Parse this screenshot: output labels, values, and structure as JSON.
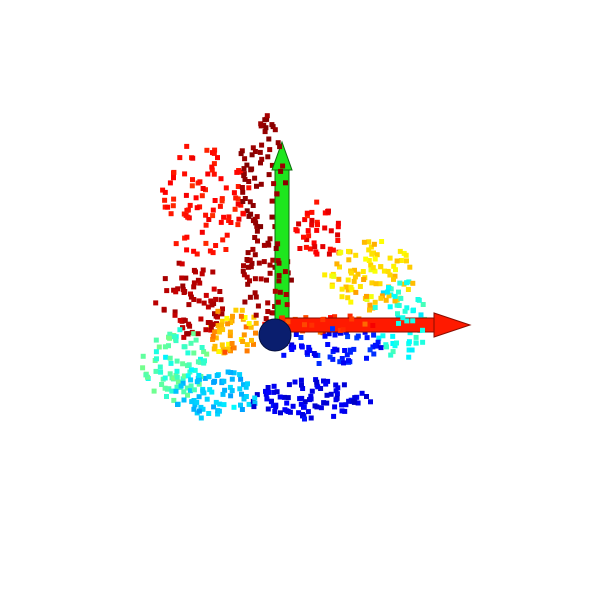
{
  "scene": {
    "background": "#ffffff",
    "point_count": 900,
    "point_colormap": "jet",
    "colors": {
      "axis_x": "#ff1a00",
      "axis_y": "#1ee61e",
      "origin_sphere": "#0a1e6e"
    },
    "icons": {
      "axis_x": "arrow-right-icon",
      "axis_y": "arrow-up-icon",
      "origin": "sphere-icon"
    }
  }
}
